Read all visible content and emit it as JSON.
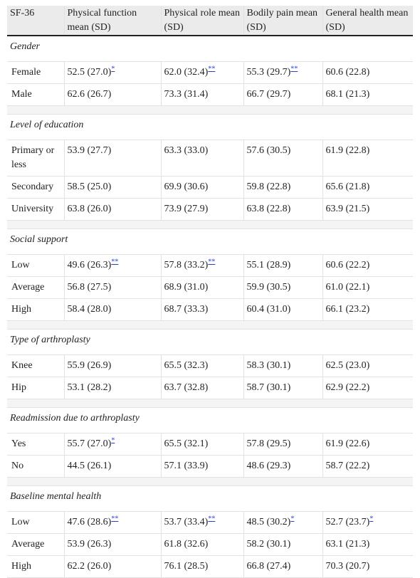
{
  "table": {
    "header": [
      "SF-36",
      "Physical function mean (SD)",
      "Physical role mean (SD)",
      "Bodily pain mean (SD)",
      "General health mean (SD)"
    ],
    "sections": [
      {
        "title": "Gender",
        "rows": [
          {
            "label": "Female",
            "cells": [
              {
                "text": "52.5 (27.0)",
                "note": "*"
              },
              {
                "text": "62.0 (32.4)",
                "note": "**"
              },
              {
                "text": "55.3 (29.7)",
                "note": "**"
              },
              {
                "text": "60.6 (22.8)"
              }
            ]
          },
          {
            "label": "Male",
            "cells": [
              {
                "text": "62.6 (26.7)"
              },
              {
                "text": "73.3 (31.4)"
              },
              {
                "text": "66.7 (29.7)"
              },
              {
                "text": "68.1 (21.3)"
              }
            ]
          }
        ]
      },
      {
        "title": "Level of education",
        "rows": [
          {
            "label": "Primary or less",
            "cells": [
              {
                "text": "53.9 (27.7)"
              },
              {
                "text": "63.3 (33.0)"
              },
              {
                "text": "57.6 (30.5)"
              },
              {
                "text": "61.9 (22.8)"
              }
            ]
          },
          {
            "label": "Secondary",
            "cells": [
              {
                "text": "58.5 (25.0)"
              },
              {
                "text": "69.9 (30.6)"
              },
              {
                "text": "59.8 (22.8)"
              },
              {
                "text": "65.6 (21.8)"
              }
            ]
          },
          {
            "label": "University",
            "cells": [
              {
                "text": "63.8 (26.0)"
              },
              {
                "text": "73.9 (27.9)"
              },
              {
                "text": "63.8 (22.8)"
              },
              {
                "text": "63.9 (21.5)"
              }
            ]
          }
        ]
      },
      {
        "title": "Social support",
        "rows": [
          {
            "label": "Low",
            "cells": [
              {
                "text": "49.6 (26.3)",
                "note": "**"
              },
              {
                "text": "57.8 (33.2)",
                "note": "**"
              },
              {
                "text": "55.1 (28.9)"
              },
              {
                "text": "60.6 (22.2)"
              }
            ]
          },
          {
            "label": "Average",
            "cells": [
              {
                "text": "56.8 (27.5)"
              },
              {
                "text": "68.9 (31.0)"
              },
              {
                "text": "59.9 (30.5)"
              },
              {
                "text": "61.0 (22.1)"
              }
            ]
          },
          {
            "label": "High",
            "cells": [
              {
                "text": "58.4 (28.0)"
              },
              {
                "text": "68.7 (33.3)"
              },
              {
                "text": "60.4 (31.0)"
              },
              {
                "text": "66.1 (23.2)"
              }
            ]
          }
        ]
      },
      {
        "title": "Type of arthroplasty",
        "rows": [
          {
            "label": "Knee",
            "cells": [
              {
                "text": "55.9 (26.9)"
              },
              {
                "text": "65.5 (32.3)"
              },
              {
                "text": "58.3 (30.1)"
              },
              {
                "text": "62.5 (23.0)"
              }
            ]
          },
          {
            "label": "Hip",
            "cells": [
              {
                "text": "53.1 (28.2)"
              },
              {
                "text": "63.7 (32.8)"
              },
              {
                "text": "58.7 (30.1)"
              },
              {
                "text": "62.9 (22.2)"
              }
            ]
          }
        ]
      },
      {
        "title": "Readmission due to arthroplasty",
        "rows": [
          {
            "label": "Yes",
            "cells": [
              {
                "text": "55.7 (27.0)",
                "note": "*"
              },
              {
                "text": "65.5 (32.1)"
              },
              {
                "text": "57.8 (29.5)"
              },
              {
                "text": "61.9 (22.6)"
              }
            ]
          },
          {
            "label": "No",
            "cells": [
              {
                "text": "44.5 (26.1)"
              },
              {
                "text": "57.1 (33.9)"
              },
              {
                "text": "48.6 (29.3)"
              },
              {
                "text": "58.7 (22.2)"
              }
            ]
          }
        ]
      },
      {
        "title": "Baseline mental health",
        "rows": [
          {
            "label": "Low",
            "cells": [
              {
                "text": "47.6 (28.6)",
                "note": "**"
              },
              {
                "text": "53.7 (33.4)",
                "note": "**"
              },
              {
                "text": "48.5 (30.2)",
                "note": "*"
              },
              {
                "text": "52.7 (23.7)",
                "note": "*"
              }
            ]
          },
          {
            "label": "Average",
            "cells": [
              {
                "text": "53.9 (26.3)"
              },
              {
                "text": "61.8 (32.6)"
              },
              {
                "text": "58.2 (30.1)"
              },
              {
                "text": "63.1 (21.3)"
              }
            ]
          },
          {
            "label": "High",
            "cells": [
              {
                "text": "62.2 (26.0)"
              },
              {
                "text": "76.1 (28.5)"
              },
              {
                "text": "66.8 (27.4)"
              },
              {
                "text": "70.3 (20.7)"
              }
            ]
          }
        ]
      }
    ]
  }
}
